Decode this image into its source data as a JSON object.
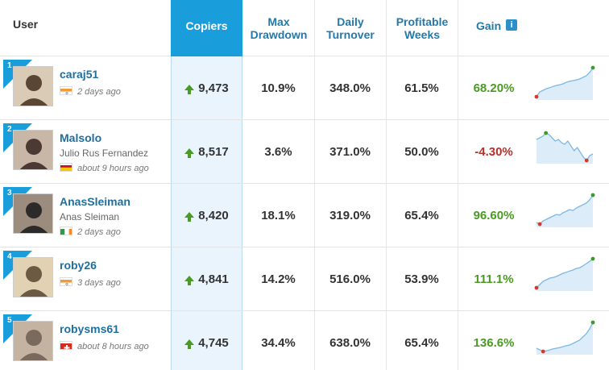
{
  "header": {
    "user": "User",
    "copiers": "Copiers",
    "max_drawdown": [
      "Max",
      "Drawdown"
    ],
    "daily_turnover": [
      "Daily",
      "Turnover"
    ],
    "profitable_weeks": [
      "Profitable",
      "Weeks"
    ],
    "gain": "Gain",
    "gain_info_icon": "i"
  },
  "rows": [
    {
      "rank": "1",
      "username": "caraj51",
      "full_name": "",
      "flag": "india-flag-icon",
      "last_seen": "2 days ago",
      "copiers": "9,473",
      "max_drawdown": "10.9%",
      "daily_turnover": "348.0%",
      "profitable_weeks": "61.5%",
      "gain": "68.20%",
      "gain_sign": "positive",
      "trend": [
        0.1,
        0.25,
        0.3,
        0.35,
        0.38,
        0.42,
        0.45,
        0.47,
        0.5,
        0.55,
        0.58,
        0.6,
        0.62,
        0.65,
        0.7,
        0.75,
        0.85,
        1.0
      ]
    },
    {
      "rank": "2",
      "username": "Malsolo",
      "full_name": "Julio Rus Fernandez",
      "flag": "spain-flag-icon",
      "last_seen": "about 9 hours ago",
      "copiers": "8,517",
      "max_drawdown": "3.6%",
      "daily_turnover": "371.0%",
      "profitable_weeks": "50.0%",
      "gain": "-4.30%",
      "gain_sign": "negative",
      "trend": [
        0.75,
        0.8,
        0.85,
        0.95,
        0.9,
        0.8,
        0.7,
        0.75,
        0.65,
        0.6,
        0.7,
        0.55,
        0.4,
        0.5,
        0.35,
        0.2,
        0.1,
        0.25,
        0.3
      ]
    },
    {
      "rank": "3",
      "username": "AnasSleiman",
      "full_name": "Anas Sleiman",
      "flag": "ireland-flag-icon",
      "last_seen": "2 days ago",
      "copiers": "8,420",
      "max_drawdown": "18.1%",
      "daily_turnover": "319.0%",
      "profitable_weeks": "65.4%",
      "gain": "96.60%",
      "gain_sign": "positive",
      "trend": [
        0.15,
        0.1,
        0.2,
        0.25,
        0.3,
        0.35,
        0.4,
        0.38,
        0.45,
        0.5,
        0.55,
        0.52,
        0.6,
        0.65,
        0.7,
        0.75,
        0.85,
        1.0
      ]
    },
    {
      "rank": "4",
      "username": "roby26",
      "full_name": "",
      "flag": "india-flag-icon",
      "last_seen": "3 days ago",
      "copiers": "4,841",
      "max_drawdown": "14.2%",
      "daily_turnover": "516.0%",
      "profitable_weeks": "53.9%",
      "gain": "111.1%",
      "gain_sign": "positive",
      "trend": [
        0.1,
        0.2,
        0.3,
        0.35,
        0.4,
        0.42,
        0.45,
        0.5,
        0.55,
        0.58,
        0.62,
        0.65,
        0.7,
        0.72,
        0.78,
        0.85,
        0.92,
        1.0
      ]
    },
    {
      "rank": "5",
      "username": "robysms61",
      "full_name": "",
      "flag": "switzerland-flag-icon",
      "last_seen": "about 8 hours ago",
      "copiers": "4,745",
      "max_drawdown": "34.4%",
      "daily_turnover": "638.0%",
      "profitable_weeks": "65.4%",
      "gain": "136.6%",
      "gain_sign": "positive",
      "trend": [
        0.2,
        0.15,
        0.1,
        0.12,
        0.15,
        0.18,
        0.2,
        0.22,
        0.25,
        0.28,
        0.3,
        0.35,
        0.4,
        0.45,
        0.55,
        0.65,
        0.8,
        1.0
      ]
    }
  ],
  "colors": {
    "accent": "#1a9edb",
    "positive": "#4a9a23",
    "negative": "#b8302b",
    "link": "#1f6f9e"
  }
}
